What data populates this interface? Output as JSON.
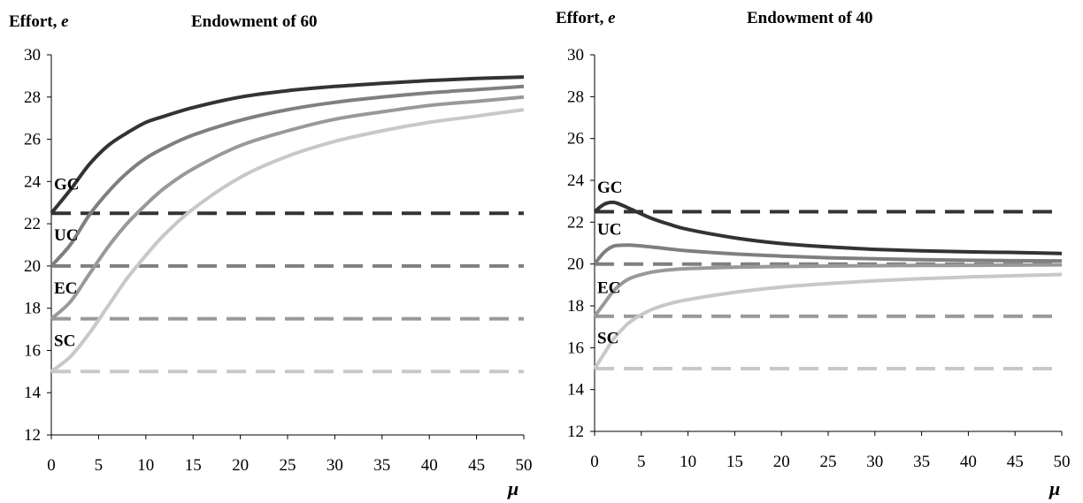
{
  "chart_data": [
    {
      "type": "line",
      "title": "Endowment of 60",
      "ylabel": "Effort, e",
      "ylabel_text": "Effort, ",
      "ylabel_var": "e",
      "xlabel": "μ",
      "xlim": [
        0,
        50
      ],
      "ylim": [
        12,
        30
      ],
      "xticks": [
        0,
        5,
        10,
        15,
        20,
        25,
        30,
        35,
        40,
        45,
        50
      ],
      "yticks": [
        12,
        14,
        16,
        18,
        20,
        22,
        24,
        26,
        28,
        30
      ],
      "grid": false,
      "legend": "none",
      "annotations": [
        {
          "text": "GC",
          "x": 0,
          "y": 23.9
        },
        {
          "text": "UC",
          "x": 0,
          "y": 21.5
        },
        {
          "text": "EC",
          "x": 0,
          "y": 19.0
        },
        {
          "text": "SC",
          "x": 0,
          "y": 16.5
        }
      ],
      "series": [
        {
          "label": "GC",
          "style": "solid",
          "color": "#333333",
          "x": [
            0,
            2,
            4,
            6,
            8,
            10,
            12,
            15,
            20,
            25,
            30,
            35,
            40,
            45,
            50
          ],
          "y": [
            22.5,
            23.6,
            24.8,
            25.7,
            26.3,
            26.8,
            27.1,
            27.5,
            28.0,
            28.3,
            28.5,
            28.65,
            28.78,
            28.88,
            28.95
          ]
        },
        {
          "label": "UC",
          "style": "solid",
          "color": "#7f7f7f",
          "x": [
            0,
            2,
            4,
            6,
            8,
            10,
            12,
            15,
            20,
            25,
            30,
            35,
            40,
            45,
            50
          ],
          "y": [
            20.0,
            21.0,
            22.4,
            23.5,
            24.4,
            25.1,
            25.6,
            26.2,
            26.9,
            27.4,
            27.75,
            28.0,
            28.2,
            28.35,
            28.5
          ]
        },
        {
          "label": "EC",
          "style": "solid",
          "color": "#999999",
          "x": [
            0,
            2,
            4,
            6,
            8,
            10,
            12,
            15,
            20,
            25,
            30,
            35,
            40,
            45,
            50
          ],
          "y": [
            17.5,
            18.3,
            19.6,
            20.9,
            22.0,
            22.9,
            23.7,
            24.6,
            25.7,
            26.4,
            26.95,
            27.3,
            27.6,
            27.8,
            28.0
          ]
        },
        {
          "label": "SC",
          "style": "solid",
          "color": "#c8c8c8",
          "x": [
            0,
            2,
            4,
            6,
            8,
            10,
            12,
            15,
            20,
            25,
            30,
            35,
            40,
            45,
            50
          ],
          "y": [
            15.0,
            15.7,
            16.8,
            18.1,
            19.4,
            20.5,
            21.5,
            22.7,
            24.2,
            25.2,
            25.9,
            26.4,
            26.8,
            27.1,
            27.4
          ]
        },
        {
          "label": "GC-flat",
          "style": "dashed",
          "color": "#333333",
          "x": [
            0,
            50
          ],
          "y": [
            22.5,
            22.5
          ]
        },
        {
          "label": "UC-flat",
          "style": "dashed",
          "color": "#7f7f7f",
          "x": [
            0,
            50
          ],
          "y": [
            20.0,
            20.0
          ]
        },
        {
          "label": "EC-flat",
          "style": "dashed",
          "color": "#999999",
          "x": [
            0,
            50
          ],
          "y": [
            17.5,
            17.5
          ]
        },
        {
          "label": "SC-flat",
          "style": "dashed",
          "color": "#c8c8c8",
          "x": [
            0,
            50
          ],
          "y": [
            15.0,
            15.0
          ]
        }
      ]
    },
    {
      "type": "line",
      "title": "Endowment of 40",
      "ylabel": "Effort, e",
      "ylabel_text": "Effort, ",
      "ylabel_var": "e",
      "xlabel": "μ",
      "xlim": [
        0,
        50
      ],
      "ylim": [
        12,
        30
      ],
      "xticks": [
        0,
        5,
        10,
        15,
        20,
        25,
        30,
        35,
        40,
        45,
        50
      ],
      "yticks": [
        12,
        14,
        16,
        18,
        20,
        22,
        24,
        26,
        28,
        30
      ],
      "grid": false,
      "legend": "none",
      "annotations": [
        {
          "text": "GC",
          "x": 0,
          "y": 23.7
        },
        {
          "text": "UC",
          "x": 0,
          "y": 21.7
        },
        {
          "text": "EC",
          "x": 0,
          "y": 18.9
        },
        {
          "text": "SC",
          "x": 0,
          "y": 16.5
        }
      ],
      "series": [
        {
          "label": "GC",
          "style": "solid",
          "color": "#333333",
          "x": [
            0,
            1,
            2,
            3,
            4,
            6,
            8,
            10,
            15,
            20,
            25,
            30,
            35,
            40,
            45,
            50
          ],
          "y": [
            22.5,
            22.85,
            22.95,
            22.8,
            22.6,
            22.2,
            21.9,
            21.65,
            21.25,
            20.98,
            20.82,
            20.7,
            20.63,
            20.58,
            20.55,
            20.5
          ]
        },
        {
          "label": "UC",
          "style": "solid",
          "color": "#7f7f7f",
          "x": [
            0,
            1,
            2,
            3,
            4,
            6,
            8,
            10,
            15,
            20,
            25,
            30,
            35,
            40,
            45,
            50
          ],
          "y": [
            20.0,
            20.55,
            20.85,
            20.9,
            20.9,
            20.82,
            20.72,
            20.63,
            20.48,
            20.38,
            20.3,
            20.25,
            20.21,
            20.18,
            20.16,
            20.15
          ]
        },
        {
          "label": "EC",
          "style": "solid",
          "color": "#999999",
          "x": [
            0,
            1,
            2,
            3,
            4,
            6,
            8,
            10,
            15,
            20,
            25,
            30,
            35,
            40,
            45,
            50
          ],
          "y": [
            17.5,
            18.1,
            18.7,
            19.1,
            19.35,
            19.6,
            19.72,
            19.78,
            19.85,
            19.88,
            19.9,
            19.92,
            19.93,
            19.94,
            19.95,
            19.96
          ]
        },
        {
          "label": "SC",
          "style": "solid",
          "color": "#c8c8c8",
          "x": [
            0,
            1,
            2,
            3,
            4,
            6,
            8,
            10,
            15,
            20,
            25,
            30,
            35,
            40,
            45,
            50
          ],
          "y": [
            15.0,
            15.7,
            16.4,
            16.9,
            17.3,
            17.8,
            18.1,
            18.3,
            18.65,
            18.9,
            19.07,
            19.2,
            19.3,
            19.38,
            19.44,
            19.5
          ]
        },
        {
          "label": "GC-flat",
          "style": "dashed",
          "color": "#333333",
          "x": [
            0,
            50
          ],
          "y": [
            22.5,
            22.5
          ]
        },
        {
          "label": "UC-flat",
          "style": "dashed",
          "color": "#7f7f7f",
          "x": [
            0,
            50
          ],
          "y": [
            20.0,
            20.0
          ]
        },
        {
          "label": "EC-flat",
          "style": "dashed",
          "color": "#999999",
          "x": [
            0,
            50
          ],
          "y": [
            17.5,
            17.5
          ]
        },
        {
          "label": "SC-flat",
          "style": "dashed",
          "color": "#c8c8c8",
          "x": [
            0,
            50
          ],
          "y": [
            15.0,
            15.0
          ]
        }
      ]
    }
  ]
}
